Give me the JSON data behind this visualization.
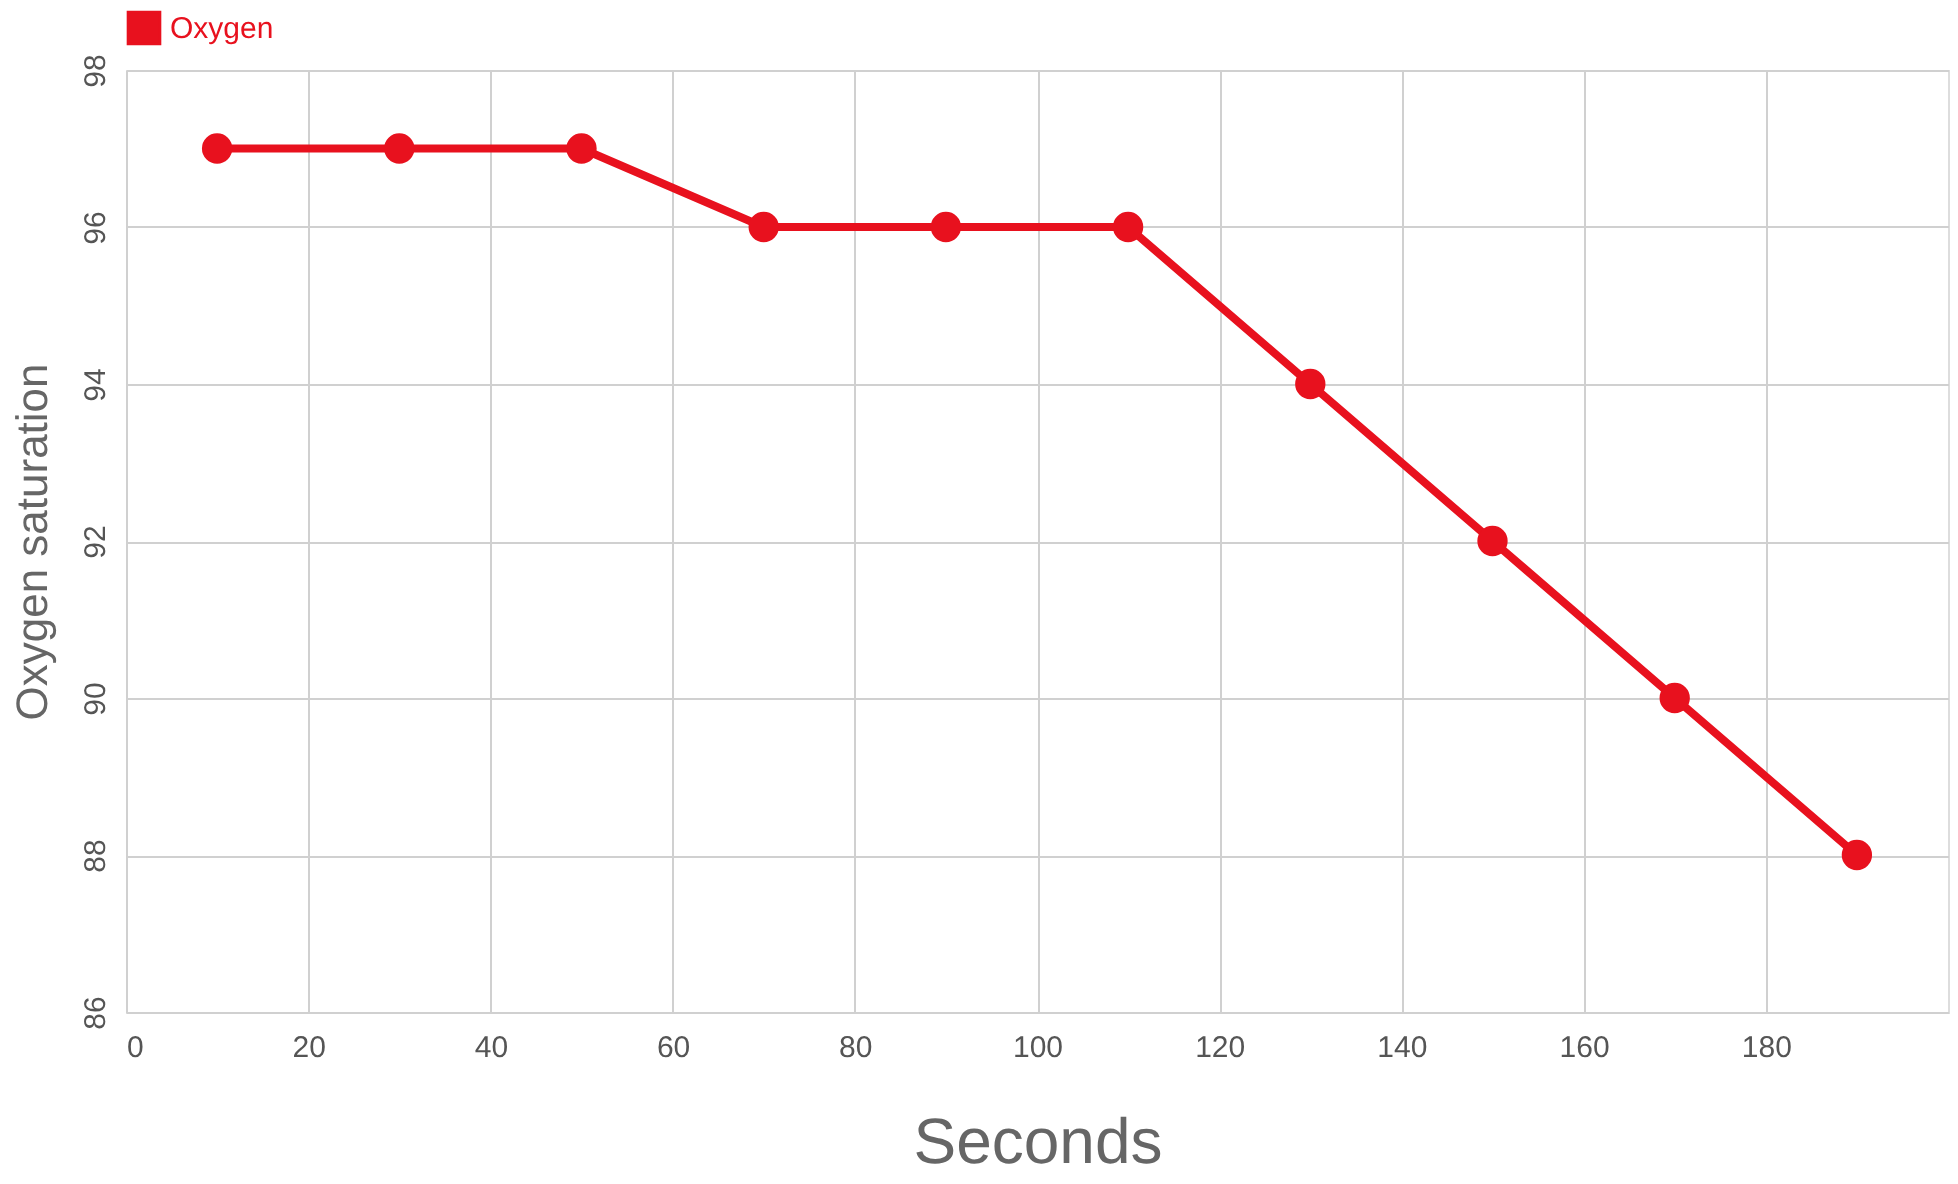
{
  "chart_data": {
    "type": "line",
    "xlabel": "Seconds",
    "ylabel": "Oxygen saturation",
    "x": [
      10,
      30,
      50,
      70,
      90,
      110,
      130,
      150,
      170,
      190
    ],
    "series": [
      {
        "name": "Oxygen",
        "color": "#e8111e",
        "values": [
          97,
          97,
          97,
          96,
          96,
          96,
          94,
          92,
          90,
          88
        ]
      }
    ],
    "xlim": [
      0,
      200
    ],
    "xticks": [
      0,
      20,
      40,
      60,
      80,
      100,
      120,
      140,
      160,
      180
    ],
    "ylim": [
      86,
      98
    ],
    "yticks": [
      86,
      88,
      90,
      92,
      94,
      96,
      98
    ],
    "grid": true,
    "legend": "top",
    "marker": "circle",
    "line_style": "solid"
  }
}
